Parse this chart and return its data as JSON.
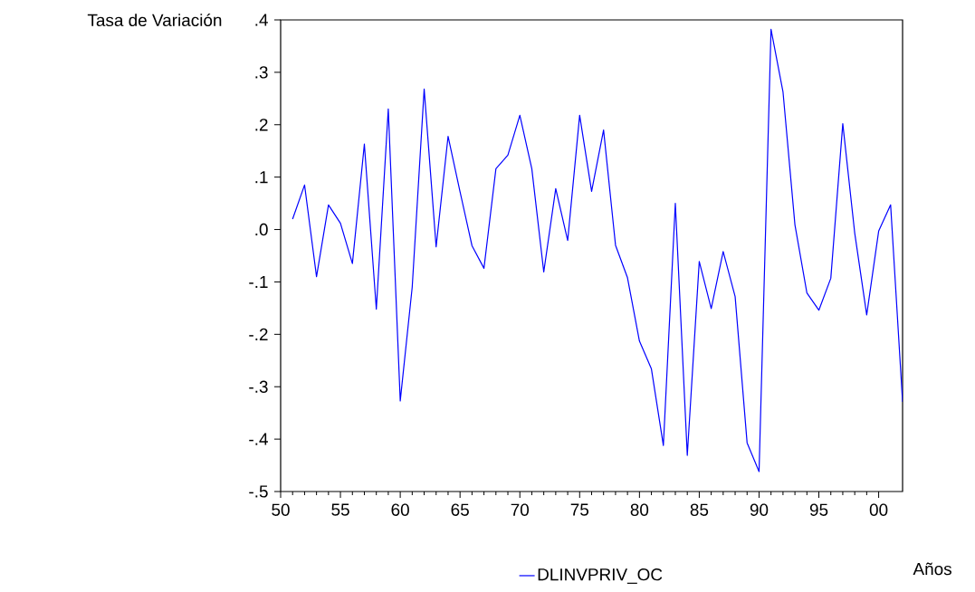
{
  "chart_data": {
    "type": "line",
    "ylabel": "Tasa de Variación",
    "xlabel": "Años",
    "x": [
      1951,
      1952,
      1953,
      1954,
      1955,
      1956,
      1957,
      1958,
      1959,
      1960,
      1961,
      1962,
      1963,
      1964,
      1965,
      1966,
      1967,
      1968,
      1969,
      1970,
      1971,
      1972,
      1973,
      1974,
      1975,
      1976,
      1977,
      1978,
      1979,
      1980,
      1981,
      1982,
      1983,
      1984,
      1985,
      1986,
      1987,
      1988,
      1989,
      1990,
      1991,
      1992,
      1993,
      1994,
      1995,
      1996,
      1997,
      1998,
      1999,
      2000,
      2001,
      2002
    ],
    "series": [
      {
        "name": "DLINVPRIV_OC",
        "color": "#0000ff",
        "values": [
          0.02,
          0.085,
          -0.09,
          0.047,
          0.012,
          -0.065,
          0.163,
          -0.152,
          0.23,
          -0.327,
          -0.11,
          0.268,
          -0.033,
          0.178,
          0.072,
          -0.031,
          -0.074,
          0.116,
          0.142,
          0.218,
          0.116,
          -0.081,
          0.078,
          -0.021,
          0.218,
          0.073,
          0.19,
          -0.03,
          -0.092,
          -0.213,
          -0.266,
          -0.412,
          0.05,
          -0.431,
          -0.061,
          -0.151,
          -0.042,
          -0.128,
          -0.407,
          -0.462,
          0.382,
          0.263,
          0.009,
          -0.121,
          -0.154,
          -0.093,
          0.202,
          -0.007,
          -0.163,
          -0.003,
          0.047,
          -0.329
        ]
      }
    ],
    "xlim": [
      1950,
      2002
    ],
    "xticks": [
      {
        "value": 1950,
        "label": "50"
      },
      {
        "value": 1955,
        "label": "55"
      },
      {
        "value": 1960,
        "label": "60"
      },
      {
        "value": 1965,
        "label": "65"
      },
      {
        "value": 1970,
        "label": "70"
      },
      {
        "value": 1975,
        "label": "75"
      },
      {
        "value": 1980,
        "label": "80"
      },
      {
        "value": 1985,
        "label": "85"
      },
      {
        "value": 1990,
        "label": "90"
      },
      {
        "value": 1995,
        "label": "95"
      },
      {
        "value": 2000,
        "label": "00"
      }
    ],
    "ylim": [
      -0.5,
      0.4
    ],
    "yticks": [
      {
        "value": -0.5,
        "label": "-.5"
      },
      {
        "value": -0.4,
        "label": "-.4"
      },
      {
        "value": -0.3,
        "label": "-.3"
      },
      {
        "value": -0.2,
        "label": "-.2"
      },
      {
        "value": -0.1,
        "label": "-.1"
      },
      {
        "value": 0.0,
        "label": ".0"
      },
      {
        "value": 0.1,
        "label": ".1"
      },
      {
        "value": 0.2,
        "label": ".2"
      },
      {
        "value": 0.3,
        "label": ".3"
      },
      {
        "value": 0.4,
        "label": ".4"
      }
    ],
    "grid": false,
    "legend": "bottom",
    "marker": "none",
    "line_style": "solid"
  }
}
